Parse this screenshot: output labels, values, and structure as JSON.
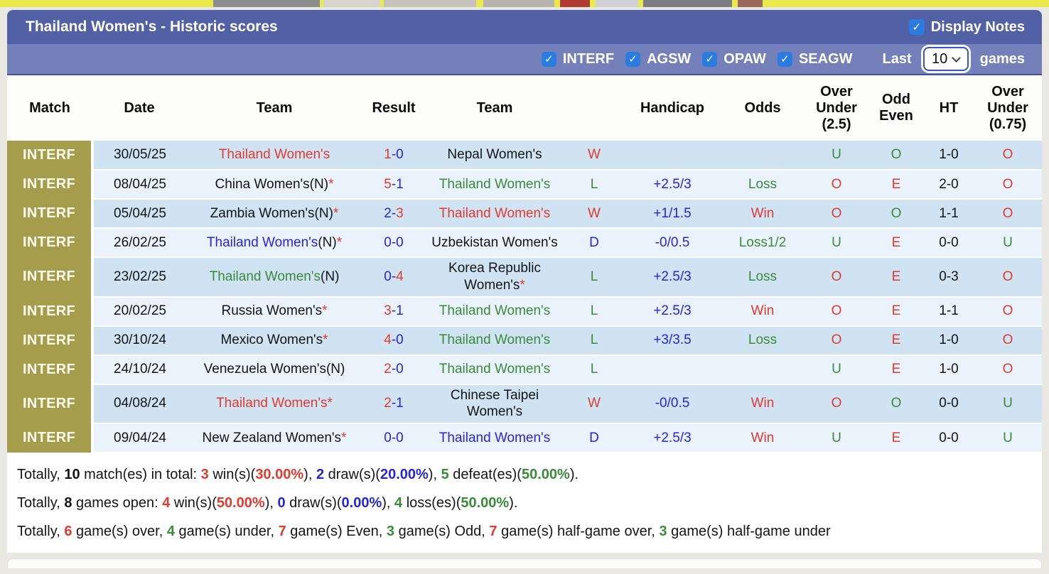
{
  "header": {
    "title": "Thailand Women's - Historic scores",
    "display_notes_label": "Display Notes",
    "display_notes_checked": true
  },
  "filters": {
    "competitions": [
      {
        "label": "INTERF",
        "checked": true
      },
      {
        "label": "AGSW",
        "checked": true
      },
      {
        "label": "OPAW",
        "checked": true
      },
      {
        "label": "SEAGW",
        "checked": true
      }
    ],
    "last_label": "Last",
    "last_value": "10",
    "games_label": "games"
  },
  "table": {
    "columns": [
      "Match",
      "Date",
      "Team",
      "Result",
      "Team",
      "",
      "Handicap",
      "Odds",
      "Over Under (2.5)",
      "Odd Even",
      "HT",
      "Over Under (0.75)"
    ],
    "rows": [
      {
        "match": "INTERF",
        "date": "30/05/25",
        "home": [
          {
            "t": "Thailand Women's",
            "c": "red"
          }
        ],
        "result": [
          {
            "t": "1",
            "c": "red"
          },
          {
            "t": "-",
            "c": "blue"
          },
          {
            "t": "0",
            "c": "blue"
          }
        ],
        "away": [
          {
            "t": "Nepal Women's",
            "c": "black"
          }
        ],
        "wdl": {
          "t": "W",
          "c": "red"
        },
        "handicap": "",
        "odds": null,
        "ou25": {
          "t": "U",
          "c": "green"
        },
        "oe": {
          "t": "O",
          "c": "green"
        },
        "ht": "1-0",
        "ou075": {
          "t": "O",
          "c": "red"
        }
      },
      {
        "match": "INTERF",
        "date": "08/04/25",
        "home": [
          {
            "t": "China Women's(N)",
            "c": "black"
          },
          {
            "t": "*",
            "c": "red"
          }
        ],
        "result": [
          {
            "t": "5",
            "c": "red"
          },
          {
            "t": "-",
            "c": "blue"
          },
          {
            "t": "1",
            "c": "blue"
          }
        ],
        "away": [
          {
            "t": "Thailand Women's",
            "c": "green"
          }
        ],
        "wdl": {
          "t": "L",
          "c": "green"
        },
        "handicap": "+2.5/3",
        "odds": {
          "t": "Loss",
          "c": "green"
        },
        "ou25": {
          "t": "O",
          "c": "red"
        },
        "oe": {
          "t": "E",
          "c": "red"
        },
        "ht": "2-0",
        "ou075": {
          "t": "O",
          "c": "red"
        }
      },
      {
        "match": "INTERF",
        "date": "05/04/25",
        "home": [
          {
            "t": "Zambia Women's(N)",
            "c": "black"
          },
          {
            "t": "*",
            "c": "red"
          }
        ],
        "result": [
          {
            "t": "2",
            "c": "blue"
          },
          {
            "t": "-",
            "c": "blue"
          },
          {
            "t": "3",
            "c": "red"
          }
        ],
        "away": [
          {
            "t": "Thailand Women's",
            "c": "red"
          }
        ],
        "wdl": {
          "t": "W",
          "c": "red"
        },
        "handicap": "+1/1.5",
        "odds": {
          "t": "Win",
          "c": "red"
        },
        "ou25": {
          "t": "O",
          "c": "red"
        },
        "oe": {
          "t": "O",
          "c": "green"
        },
        "ht": "1-1",
        "ou075": {
          "t": "O",
          "c": "red"
        }
      },
      {
        "match": "INTERF",
        "date": "26/02/25",
        "home": [
          {
            "t": "Thailand Women's",
            "c": "blue"
          },
          {
            "t": "(N)",
            "c": "black"
          },
          {
            "t": "*",
            "c": "red"
          }
        ],
        "result": [
          {
            "t": "0",
            "c": "blue"
          },
          {
            "t": "-",
            "c": "blue"
          },
          {
            "t": "0",
            "c": "blue"
          }
        ],
        "away": [
          {
            "t": "Uzbekistan Women's",
            "c": "black"
          }
        ],
        "wdl": {
          "t": "D",
          "c": "blue"
        },
        "handicap": "-0/0.5",
        "odds": {
          "t": "Loss1/2",
          "c": "green"
        },
        "ou25": {
          "t": "U",
          "c": "green"
        },
        "oe": {
          "t": "E",
          "c": "red"
        },
        "ht": "0-0",
        "ou075": {
          "t": "U",
          "c": "green"
        }
      },
      {
        "match": "INTERF",
        "date": "23/02/25",
        "home": [
          {
            "t": "Thailand Women's",
            "c": "green"
          },
          {
            "t": "(N)",
            "c": "black"
          }
        ],
        "result": [
          {
            "t": "0",
            "c": "blue"
          },
          {
            "t": "-",
            "c": "blue"
          },
          {
            "t": "4",
            "c": "red"
          }
        ],
        "away": [
          {
            "t": "Korea Republic Women's",
            "c": "black"
          },
          {
            "t": "*",
            "c": "red"
          }
        ],
        "wdl": {
          "t": "L",
          "c": "green"
        },
        "handicap": "+2.5/3",
        "odds": {
          "t": "Loss",
          "c": "green"
        },
        "ou25": {
          "t": "O",
          "c": "red"
        },
        "oe": {
          "t": "E",
          "c": "red"
        },
        "ht": "0-3",
        "ou075": {
          "t": "O",
          "c": "red"
        }
      },
      {
        "match": "INTERF",
        "date": "20/02/25",
        "home": [
          {
            "t": "Russia Women's",
            "c": "black"
          },
          {
            "t": "*",
            "c": "red"
          }
        ],
        "result": [
          {
            "t": "3",
            "c": "red"
          },
          {
            "t": "-",
            "c": "blue"
          },
          {
            "t": "1",
            "c": "blue"
          }
        ],
        "away": [
          {
            "t": "Thailand Women's",
            "c": "green"
          }
        ],
        "wdl": {
          "t": "L",
          "c": "green"
        },
        "handicap": "+2.5/3",
        "odds": {
          "t": "Win",
          "c": "red"
        },
        "ou25": {
          "t": "O",
          "c": "red"
        },
        "oe": {
          "t": "E",
          "c": "red"
        },
        "ht": "1-1",
        "ou075": {
          "t": "O",
          "c": "red"
        }
      },
      {
        "match": "INTERF",
        "date": "30/10/24",
        "home": [
          {
            "t": "Mexico Women's",
            "c": "black"
          },
          {
            "t": "*",
            "c": "red"
          }
        ],
        "result": [
          {
            "t": "4",
            "c": "red"
          },
          {
            "t": "-",
            "c": "blue"
          },
          {
            "t": "0",
            "c": "blue"
          }
        ],
        "away": [
          {
            "t": "Thailand Women's",
            "c": "green"
          }
        ],
        "wdl": {
          "t": "L",
          "c": "green"
        },
        "handicap": "+3/3.5",
        "odds": {
          "t": "Loss",
          "c": "green"
        },
        "ou25": {
          "t": "O",
          "c": "red"
        },
        "oe": {
          "t": "E",
          "c": "red"
        },
        "ht": "1-0",
        "ou075": {
          "t": "O",
          "c": "red"
        }
      },
      {
        "match": "INTERF",
        "date": "24/10/24",
        "home": [
          {
            "t": "Venezuela Women's(N)",
            "c": "black"
          }
        ],
        "result": [
          {
            "t": "2",
            "c": "red"
          },
          {
            "t": "-",
            "c": "blue"
          },
          {
            "t": "0",
            "c": "blue"
          }
        ],
        "away": [
          {
            "t": "Thailand Women's",
            "c": "green"
          }
        ],
        "wdl": {
          "t": "L",
          "c": "green"
        },
        "handicap": "",
        "odds": null,
        "ou25": {
          "t": "U",
          "c": "green"
        },
        "oe": {
          "t": "E",
          "c": "red"
        },
        "ht": "1-0",
        "ou075": {
          "t": "O",
          "c": "red"
        }
      },
      {
        "match": "INTERF",
        "date": "04/08/24",
        "home": [
          {
            "t": "Thailand Women's",
            "c": "red"
          },
          {
            "t": "*",
            "c": "red"
          }
        ],
        "result": [
          {
            "t": "2",
            "c": "red"
          },
          {
            "t": "-",
            "c": "blue"
          },
          {
            "t": "1",
            "c": "blue"
          }
        ],
        "away": [
          {
            "t": "Chinese Taipei Women's",
            "c": "black"
          }
        ],
        "wdl": {
          "t": "W",
          "c": "red"
        },
        "handicap": "-0/0.5",
        "odds": {
          "t": "Win",
          "c": "red"
        },
        "ou25": {
          "t": "O",
          "c": "red"
        },
        "oe": {
          "t": "O",
          "c": "green"
        },
        "ht": "0-0",
        "ou075": {
          "t": "U",
          "c": "green"
        }
      },
      {
        "match": "INTERF",
        "date": "09/04/24",
        "home": [
          {
            "t": "New Zealand Women's",
            "c": "black"
          },
          {
            "t": "*",
            "c": "red"
          }
        ],
        "result": [
          {
            "t": "0",
            "c": "blue"
          },
          {
            "t": "-",
            "c": "blue"
          },
          {
            "t": "0",
            "c": "blue"
          }
        ],
        "away": [
          {
            "t": "Thailand Women's",
            "c": "blue"
          }
        ],
        "wdl": {
          "t": "D",
          "c": "blue"
        },
        "handicap": "+2.5/3",
        "odds": {
          "t": "Win",
          "c": "red"
        },
        "ou25": {
          "t": "U",
          "c": "green"
        },
        "oe": {
          "t": "E",
          "c": "red"
        },
        "ht": "0-0",
        "ou075": {
          "t": "U",
          "c": "green"
        }
      }
    ]
  },
  "summary": {
    "lines": [
      [
        {
          "t": "Totally, ",
          "c": "black"
        },
        {
          "t": "10",
          "c": "black",
          "b": true
        },
        {
          "t": " match(es) in total: ",
          "c": "black"
        },
        {
          "t": "3",
          "c": "red",
          "b": true
        },
        {
          "t": " win(s)(",
          "c": "black"
        },
        {
          "t": "30.00%",
          "c": "red",
          "b": true
        },
        {
          "t": "), ",
          "c": "black"
        },
        {
          "t": "2",
          "c": "blue",
          "b": true
        },
        {
          "t": " draw(s)(",
          "c": "black"
        },
        {
          "t": "20.00%",
          "c": "blue",
          "b": true
        },
        {
          "t": "), ",
          "c": "black"
        },
        {
          "t": "5",
          "c": "green",
          "b": true
        },
        {
          "t": " defeat(es)(",
          "c": "black"
        },
        {
          "t": "50.00%",
          "c": "green",
          "b": true
        },
        {
          "t": ").",
          "c": "black"
        }
      ],
      [
        {
          "t": "Totally, ",
          "c": "black"
        },
        {
          "t": "8",
          "c": "black",
          "b": true
        },
        {
          "t": " games open: ",
          "c": "black"
        },
        {
          "t": "4",
          "c": "red",
          "b": true
        },
        {
          "t": " win(s)(",
          "c": "black"
        },
        {
          "t": "50.00%",
          "c": "red",
          "b": true
        },
        {
          "t": "), ",
          "c": "black"
        },
        {
          "t": "0",
          "c": "blue",
          "b": true
        },
        {
          "t": " draw(s)(",
          "c": "black"
        },
        {
          "t": "0.00%",
          "c": "blue",
          "b": true
        },
        {
          "t": "), ",
          "c": "black"
        },
        {
          "t": "4",
          "c": "green",
          "b": true
        },
        {
          "t": " loss(es)(",
          "c": "black"
        },
        {
          "t": "50.00%",
          "c": "green",
          "b": true
        },
        {
          "t": ").",
          "c": "black"
        }
      ],
      [
        {
          "t": "Totally, ",
          "c": "black"
        },
        {
          "t": "6",
          "c": "red",
          "b": true
        },
        {
          "t": " game(s) over, ",
          "c": "black"
        },
        {
          "t": "4",
          "c": "green",
          "b": true
        },
        {
          "t": " game(s) under, ",
          "c": "black"
        },
        {
          "t": "7",
          "c": "red",
          "b": true
        },
        {
          "t": " game(s) Even, ",
          "c": "black"
        },
        {
          "t": "3",
          "c": "green",
          "b": true
        },
        {
          "t": " game(s) Odd, ",
          "c": "black"
        },
        {
          "t": "7",
          "c": "red",
          "b": true
        },
        {
          "t": " game(s) half-game over, ",
          "c": "black"
        },
        {
          "t": "3",
          "c": "green",
          "b": true
        },
        {
          "t": " game(s) half-game under",
          "c": "black"
        }
      ]
    ]
  },
  "colors": {
    "headerBar": "#5260a6",
    "filterBar": "#7480b9",
    "badgeOlive": "#a59d4b",
    "rowBlue": "#cfe3f3",
    "rowLight": "#eaf3fb",
    "checkboxBlue": "#2a7ce0",
    "red": "#e23a2e",
    "blue": "#2525dc",
    "green": "#3a8a3a",
    "black": "#141414"
  }
}
